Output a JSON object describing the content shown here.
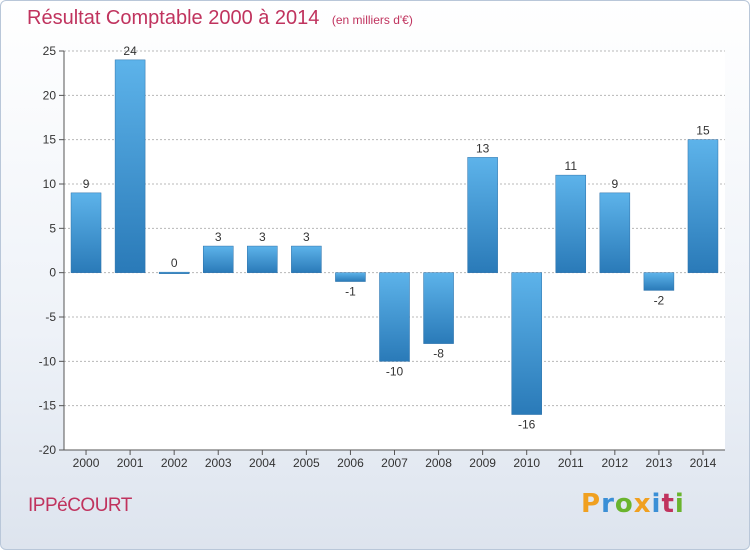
{
  "chart_data": {
    "type": "bar",
    "title": "Résultat Comptable 2000 à 2014",
    "subtitle": "(en milliers d'€)",
    "categories": [
      "2000",
      "2001",
      "2002",
      "2003",
      "2004",
      "2005",
      "2006",
      "2007",
      "2008",
      "2009",
      "2010",
      "2011",
      "2012",
      "2013",
      "2014"
    ],
    "values": [
      9,
      24,
      0,
      3,
      3,
      3,
      -1,
      -10,
      -8,
      13,
      -16,
      11,
      9,
      -2,
      15
    ],
    "value_labels": [
      "9",
      "24",
      "0",
      "3",
      "3",
      "3",
      "-1",
      "-10",
      "-8",
      "13",
      "-16",
      "11",
      "9",
      "-2",
      "15"
    ],
    "ylim": [
      -20,
      25
    ],
    "yticks": [
      25,
      20,
      15,
      10,
      5,
      0,
      -5,
      -10,
      -15,
      -20
    ],
    "ytick_labels": [
      "25",
      "20",
      "15",
      "10",
      "5",
      "0",
      "-5",
      "-10",
      "-15",
      "-20"
    ],
    "grid": true,
    "xlabel": "",
    "ylabel": "",
    "colors": {
      "bar_light": "#5db3ea",
      "bar_dark": "#2a7ab8",
      "title": "#c0335e"
    }
  },
  "location": "IPPéCOURT",
  "brand": {
    "letters": [
      "P",
      "r",
      "o",
      "x",
      "i",
      "t",
      "i"
    ],
    "colors": [
      "#f0a020",
      "#3a8fd6",
      "#6ab42d",
      "#f0a020",
      "#3a8fd6",
      "#c0335e",
      "#6ab42d"
    ]
  }
}
